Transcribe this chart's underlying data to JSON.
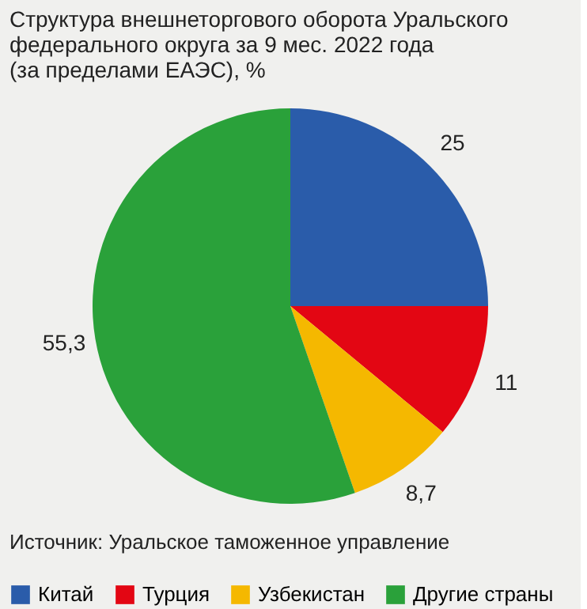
{
  "chart_data": {
    "type": "pie",
    "title": [
      "Структура внешнеторгового оборота Уральского",
      "федерального округа за 9 мес. 2022 года",
      "(за пределами ЕАЭС), %"
    ],
    "categories": [
      "Китай",
      "Турция",
      "Узбекистан",
      "Другие страны"
    ],
    "values": [
      25,
      11,
      8.7,
      55.3
    ],
    "colors": [
      "#2a5caa",
      "#e30613",
      "#f5b800",
      "#2aa13a"
    ],
    "value_labels": [
      "25",
      "11",
      "8,7",
      "55,3"
    ],
    "legend": "bottom",
    "annotations": [
      "Источник: Уральское таможенное управление"
    ]
  }
}
